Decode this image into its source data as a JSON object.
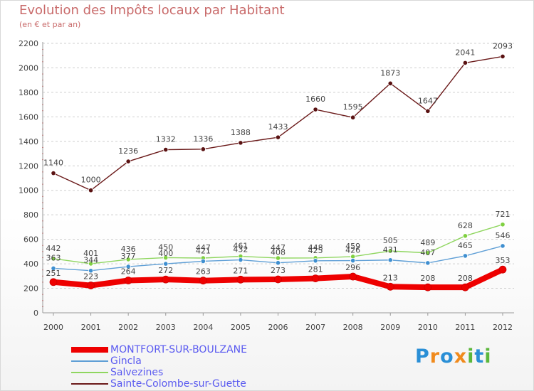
{
  "header": {
    "title": "Evolution des Impôts locaux par Habitant",
    "subtitle": "(en € et par an)"
  },
  "logo": {
    "text": "Proxiti"
  },
  "chart_data": {
    "type": "line",
    "title": "Evolution des Impôts locaux par Habitant",
    "subtitle": "(en € et par an)",
    "xlabel": "",
    "ylabel": "",
    "ylim": [
      0,
      2200
    ],
    "yticks": [
      0,
      200,
      400,
      600,
      800,
      1000,
      1200,
      1400,
      1600,
      1800,
      2000,
      2200
    ],
    "grid": "horizontal dashed",
    "legend_position": "bottom-left",
    "categories": [
      "2000",
      "2001",
      "2002",
      "2003",
      "2004",
      "2005",
      "2006",
      "2007",
      "2008",
      "2009",
      "2010",
      "2011",
      "2012"
    ],
    "series": [
      {
        "name": "MONTFORT-SUR-BOULZANE",
        "color": "#ee0000",
        "values": [
          251,
          223,
          264,
          272,
          263,
          271,
          273,
          281,
          296,
          213,
          208,
          208,
          353
        ],
        "labels": [
          "251",
          "223",
          "264",
          "272",
          "263",
          "271",
          "273",
          "281",
          "296",
          "213",
          "208",
          "208",
          "353"
        ]
      },
      {
        "name": "Gincla",
        "color": "#5f9fd6",
        "values": [
          363,
          344,
          377,
          400,
          421,
          432,
          408,
          425,
          426,
          431,
          407,
          465,
          546
        ],
        "labels": [
          "363",
          "344",
          "377",
          "400",
          "421",
          "432",
          "408",
          "425",
          "426",
          "431",
          "407",
          "465",
          "546"
        ]
      },
      {
        "name": "Salvezines",
        "color": "#8fd65f",
        "values": [
          442,
          401,
          436,
          450,
          447,
          461,
          447,
          448,
          459,
          505,
          489,
          628,
          721
        ],
        "labels": [
          "442",
          "401",
          "436",
          "450",
          "447",
          "461",
          "447",
          "448",
          "459",
          "505",
          "489",
          "628",
          "721"
        ]
      },
      {
        "name": "Sainte-Colombe-sur-Guette",
        "color": "#6b1a1a",
        "values": [
          1140,
          1000,
          1236,
          1332,
          1336,
          1388,
          1433,
          1660,
          1595,
          1873,
          1647,
          2041,
          2093
        ],
        "labels": [
          "1140",
          "1000",
          "1236",
          "1332",
          "1336",
          "1388",
          "1433",
          "1660",
          "1595",
          "1873",
          "1647",
          "2041",
          "2093"
        ]
      }
    ]
  }
}
